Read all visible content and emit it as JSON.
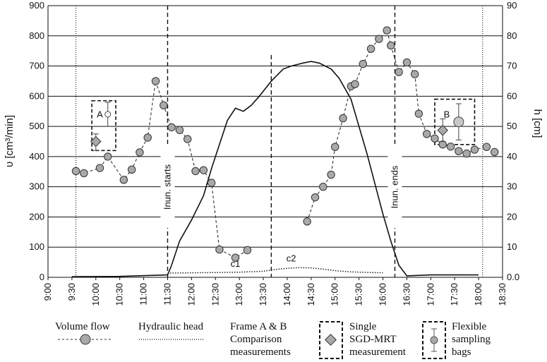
{
  "chart_data": {
    "type": "line",
    "x_ticks": [
      "9:00",
      "9:30",
      "10:00",
      "10:30",
      "11:00",
      "11:30",
      "12:00",
      "12:30",
      "13:00",
      "13:30",
      "14:00",
      "14:30",
      "15:00",
      "15:30",
      "16:00",
      "16:30",
      "17:00",
      "17:30",
      "18:00",
      "18:30"
    ],
    "x_range": [
      "9:00",
      "18:30"
    ],
    "y_left": {
      "label": "υ [cm³/min]",
      "ticks": [
        0,
        100,
        200,
        300,
        400,
        500,
        600,
        700,
        800,
        900
      ],
      "range": [
        0,
        900
      ]
    },
    "y_right": {
      "label": "h [cm]",
      "ticks": [
        0.0,
        10,
        20,
        30,
        40,
        50,
        60,
        70,
        80,
        90
      ],
      "tick_labels": [
        "0.0",
        "10",
        "20",
        "30",
        "40",
        "50",
        "60",
        "70",
        "80",
        "90"
      ],
      "range": [
        0,
        90
      ]
    },
    "grid": "horizontal",
    "series": [
      {
        "name": "Volume flow",
        "axis": "left",
        "style": "dashed-markers",
        "segments": [
          [
            [
              "9:35",
              352
            ],
            [
              "9:45",
              345
            ],
            [
              "10:05",
              362
            ],
            [
              "10:15",
              400
            ],
            [
              "10:35",
              323
            ],
            [
              "10:45",
              357
            ],
            [
              "10:55",
              414
            ],
            [
              "11:05",
              463
            ],
            [
              "11:15",
              650
            ],
            [
              "11:25",
              570
            ],
            [
              "11:35",
              497
            ],
            [
              "11:45",
              488
            ],
            [
              "11:55",
              458
            ],
            [
              "12:05",
              352
            ],
            [
              "12:15",
              355
            ],
            [
              "12:25",
              313
            ],
            [
              "12:35",
              92
            ],
            [
              "12:55",
              65
            ],
            [
              "13:10",
              90
            ]
          ],
          [
            [
              "14:25",
              185
            ],
            [
              "14:35",
              265
            ],
            [
              "14:45",
              300
            ],
            [
              "14:55",
              340
            ],
            [
              "15:00",
              432
            ],
            [
              "15:10",
              527
            ],
            [
              "15:20",
              633
            ],
            [
              "15:25",
              640
            ],
            [
              "15:35",
              707
            ],
            [
              "15:45",
              757
            ],
            [
              "15:55",
              790
            ],
            [
              "16:05",
              818
            ],
            [
              "16:10",
              768
            ],
            [
              "16:20",
              680
            ],
            [
              "16:30",
              712
            ],
            [
              "16:40",
              673
            ],
            [
              "16:45",
              542
            ],
            [
              "16:55",
              475
            ],
            [
              "17:05",
              460
            ],
            [
              "17:15",
              440
            ],
            [
              "17:25",
              433
            ],
            [
              "17:35",
              418
            ],
            [
              "17:45",
              410
            ],
            [
              "17:55",
              423
            ],
            [
              "18:10",
              432
            ],
            [
              "18:20",
              415
            ]
          ]
        ]
      },
      {
        "name": "Hydraulic head",
        "axis": "right",
        "style": "solid",
        "points": [
          [
            "9:30",
            0.2
          ],
          [
            "10:30",
            0.3
          ],
          [
            "11:30",
            0.8
          ],
          [
            "11:35",
            4
          ],
          [
            "11:45",
            12
          ],
          [
            "12:00",
            19
          ],
          [
            "12:15",
            27
          ],
          [
            "12:25",
            36
          ],
          [
            "12:35",
            44
          ],
          [
            "12:45",
            52
          ],
          [
            "12:55",
            56
          ],
          [
            "13:05",
            55
          ],
          [
            "13:15",
            57
          ],
          [
            "13:25",
            60
          ],
          [
            "13:40",
            65
          ],
          [
            "13:55",
            69
          ],
          [
            "14:05",
            70
          ],
          [
            "14:20",
            71
          ],
          [
            "14:30",
            71.5
          ],
          [
            "14:40",
            71
          ],
          [
            "14:55",
            69
          ],
          [
            "15:05",
            66
          ],
          [
            "15:20",
            59
          ],
          [
            "15:30",
            50
          ],
          [
            "15:40",
            41
          ],
          [
            "15:50",
            31
          ],
          [
            "16:00",
            21
          ],
          [
            "16:10",
            12
          ],
          [
            "16:20",
            4
          ],
          [
            "16:30",
            0.5
          ],
          [
            "17:00",
            0.8
          ],
          [
            "18:00",
            0.8
          ]
        ]
      },
      {
        "name": "Comparison",
        "axis": "right",
        "style": "dotted",
        "points": [
          [
            "11:30",
            1.4
          ],
          [
            "12:00",
            1.5
          ],
          [
            "12:30",
            1.6
          ],
          [
            "13:00",
            1.7
          ],
          [
            "13:30",
            2.0
          ],
          [
            "13:45",
            2.6
          ],
          [
            "14:00",
            3.0
          ],
          [
            "14:15",
            3.2
          ],
          [
            "14:30",
            3.1
          ],
          [
            "14:45",
            2.7
          ],
          [
            "15:00",
            2.2
          ],
          [
            "15:20",
            1.8
          ],
          [
            "15:45",
            1.6
          ],
          [
            "16:00",
            1.5
          ]
        ]
      }
    ],
    "markers": [
      {
        "name": "SGD-MRT",
        "x": "10:00",
        "value": 450,
        "error": [
          420,
          475
        ],
        "frame": "A"
      },
      {
        "name": "bags",
        "x": "10:15",
        "value": 540,
        "error": [
          500,
          580
        ],
        "frame": "A"
      },
      {
        "name": "SGD-MRT",
        "x": "17:15",
        "value": 487,
        "error": [
          450,
          525
        ],
        "frame": "B"
      },
      {
        "name": "bags",
        "x": "17:35",
        "value": 515,
        "error": [
          455,
          575
        ],
        "frame": "B"
      }
    ],
    "annotations": {
      "inun_starts": {
        "x": "11:30",
        "label": "Inun. starts"
      },
      "inun_ends": {
        "x": "16:15",
        "label": "Inun. ends"
      },
      "frame_a": "A",
      "frame_b": "B",
      "c1": "c1",
      "c2": "c2"
    },
    "legend": {
      "volume_flow": "Volume flow",
      "hydraulic_head": "Hydraulic head",
      "frame_line1": "Frame A & B",
      "frame_line2": "Comparison",
      "frame_line3": "measurements",
      "single_line1": "Single",
      "single_line2": "SGD-MRT",
      "single_line3": "measurement",
      "flex_line1": "Flexible",
      "flex_line2": "sampling",
      "flex_line3": "bags"
    }
  }
}
